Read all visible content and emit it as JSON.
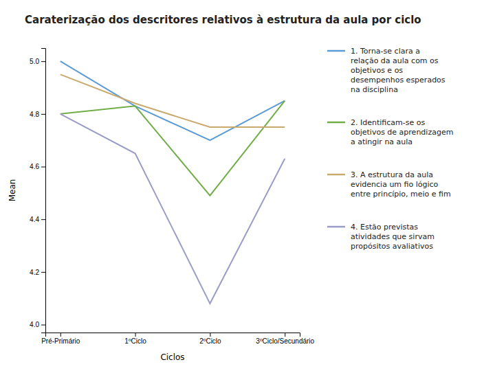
{
  "chart_data": {
    "type": "line",
    "title": "Caraterização dos descritores relativos à estrutura da aula por ciclo",
    "x_label": "Ciclos",
    "y_label": "Mean",
    "categories": [
      "Pré-Primário",
      "1ºCiclo",
      "2ºCiclo",
      "3ºCiclo/Secundário"
    ],
    "series": [
      {
        "name": "1. Torna-se clara a\nrelação da aula com os\nobjetivos e os\ndesempenhos esperados\nna disciplina",
        "color": "#5b9bd5",
        "values": [
          5.0,
          4.83,
          4.7,
          4.85
        ]
      },
      {
        "name": "2. Identificam-se os\nobjetivos de aprendizagem\na atingir na aula",
        "color": "#70ad47",
        "values": [
          4.8,
          4.83,
          4.49,
          4.85
        ]
      },
      {
        "name": "3. A estrutura da aula\nevidencia um fio lógico\nentre princípio, meio e fim",
        "color": "#c9a96e",
        "values": [
          4.95,
          4.84,
          4.75,
          4.75
        ]
      },
      {
        "name": "4. Estão previstas\natividades que sirvam\npropósitos avaliativos",
        "color": "#9b9bc8",
        "values": [
          4.8,
          4.65,
          4.08,
          4.63
        ]
      }
    ],
    "ylim": [
      3.97,
      5.05
    ],
    "yticks": [
      {
        "value": 4.0,
        "label": "4.0"
      },
      4.2,
      4.4,
      4.6,
      4.8,
      {
        "value": 5.0,
        "label": "5.0"
      }
    ],
    "grid": false,
    "legend": "right"
  }
}
